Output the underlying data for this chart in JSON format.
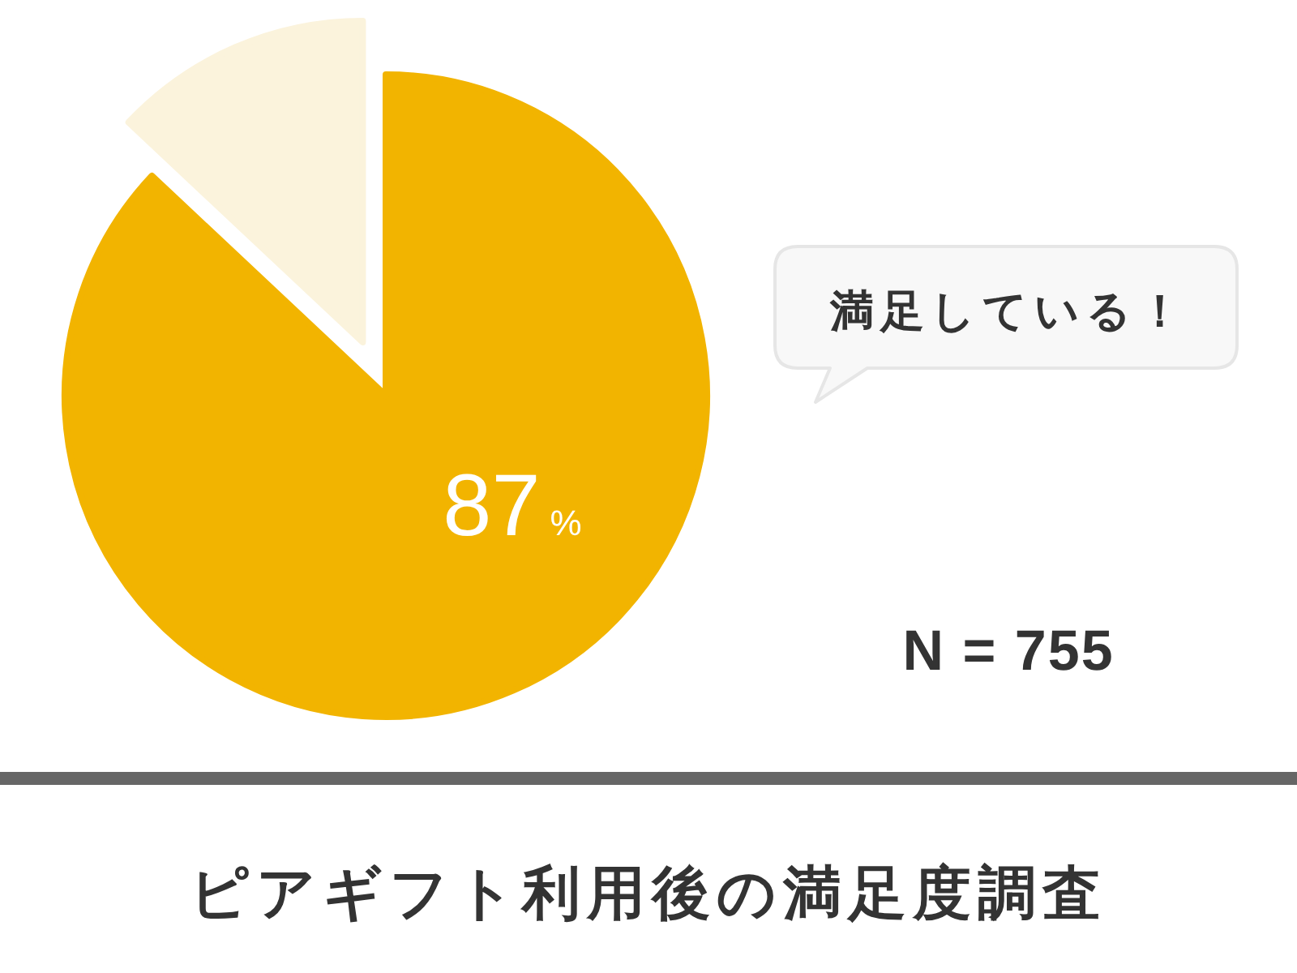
{
  "chart_data": {
    "type": "pie",
    "title": "ピアギフト利用後の満足度調査",
    "categories": [
      null,
      null
    ],
    "values": [
      87,
      13
    ],
    "colors": [
      "#f2b400",
      "#fbf3dc"
    ],
    "value_labels": [
      "87%",
      null
    ],
    "annotations": [
      "満足している！",
      "N = 755"
    ]
  }
}
